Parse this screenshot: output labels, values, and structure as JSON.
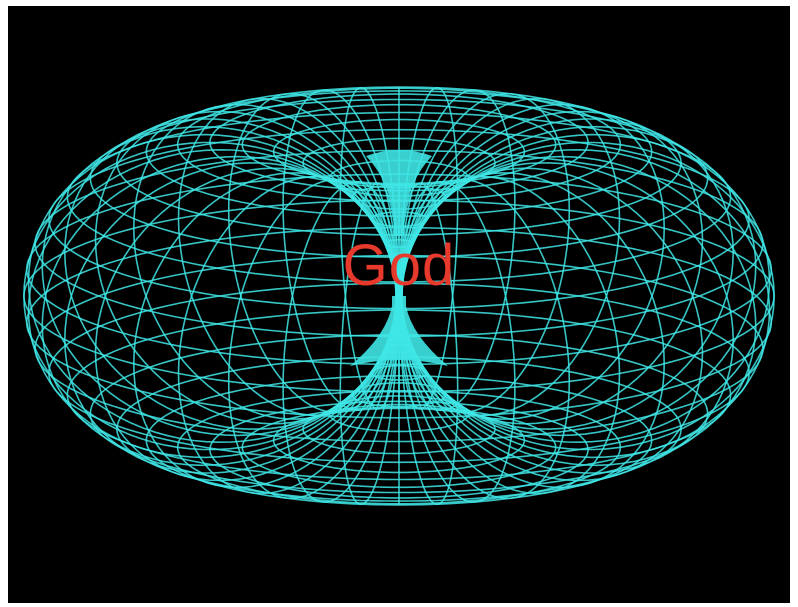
{
  "image": {
    "subject": "torus-wireframe",
    "background_color": "#000000",
    "wire_color": "#3fe6e6",
    "label_color": "#e8392d"
  },
  "label": {
    "text": "God"
  }
}
